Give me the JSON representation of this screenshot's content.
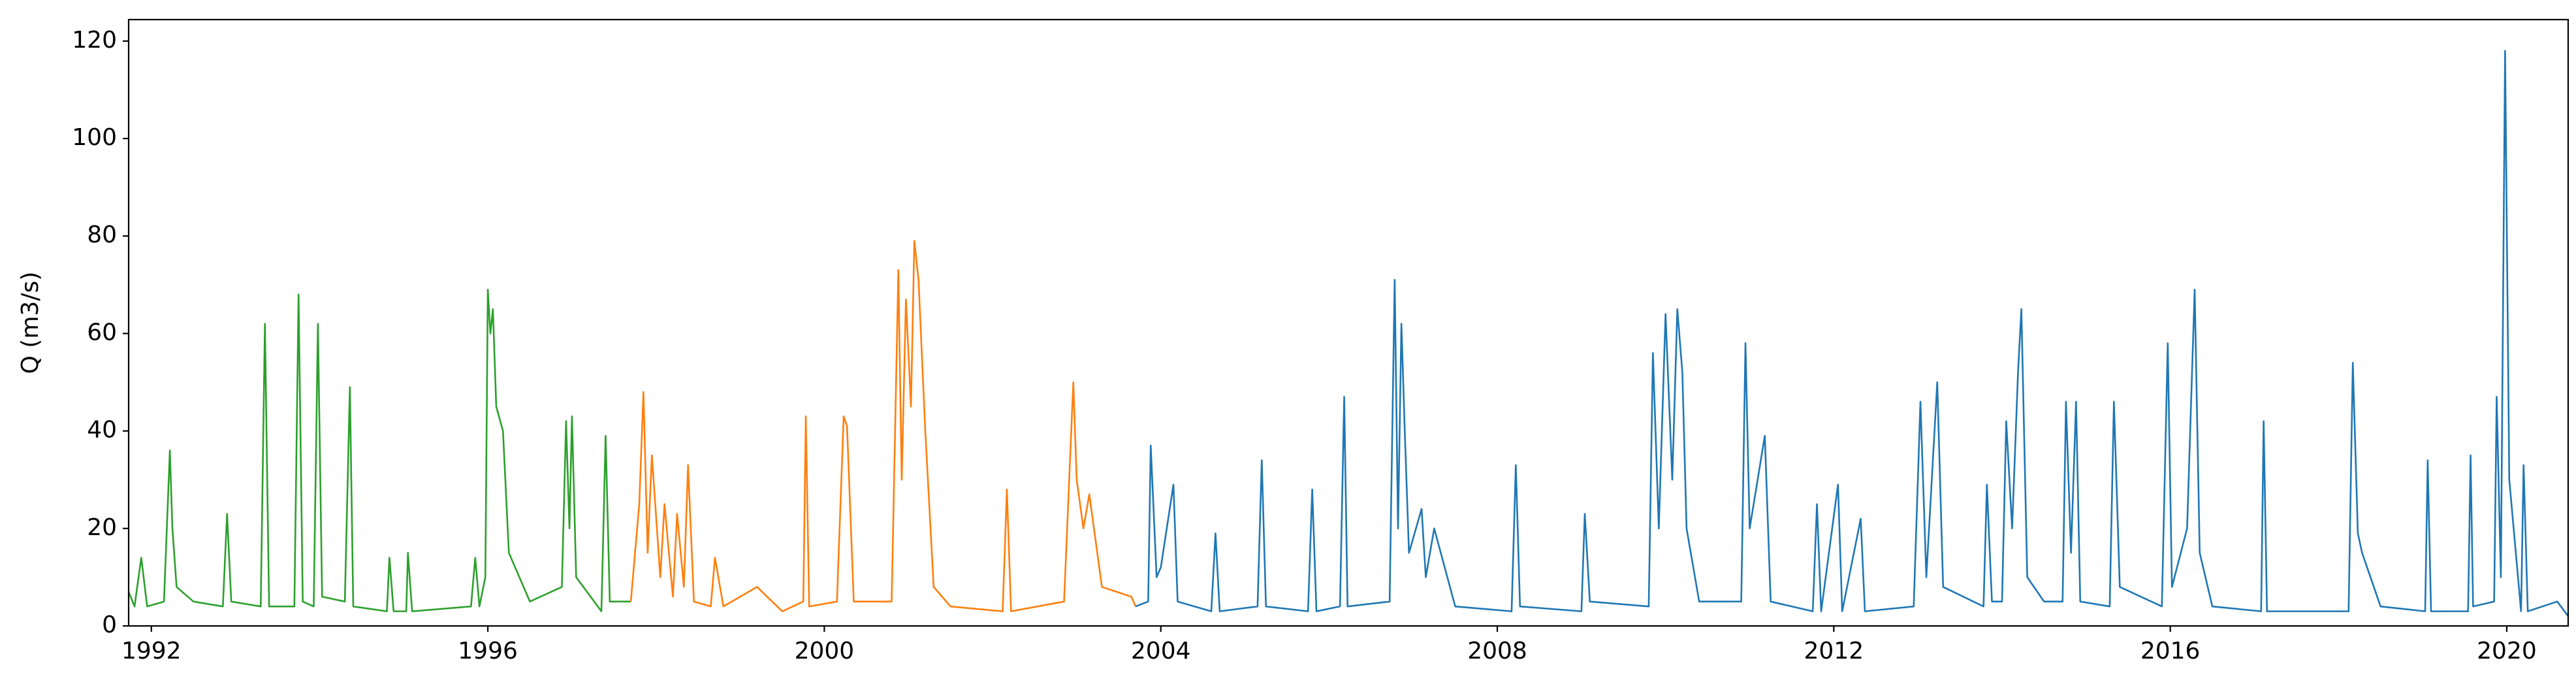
{
  "chart_data": {
    "type": "line",
    "ylabel": "Q (m3/s)",
    "xlim": [
      1991.73,
      2020.73
    ],
    "ylim": [
      0,
      124.4
    ],
    "xticks": [
      1992,
      1996,
      2000,
      2004,
      2008,
      2012,
      2016,
      2020
    ],
    "yticks": [
      0,
      20,
      40,
      60,
      80,
      100,
      120
    ],
    "grid": false,
    "series": [
      {
        "color": "#2ca02c",
        "x": [
          1991.73,
          1991.8,
          1991.88,
          1991.95,
          1992.15,
          1992.22,
          1992.25,
          1992.3,
          1992.5,
          1992.85,
          1992.9,
          1992.95,
          1993.3,
          1993.35,
          1993.4,
          1993.7,
          1993.75,
          1993.8,
          1993.93,
          1993.98,
          1994.03,
          1994.3,
          1994.36,
          1994.4,
          1994.8,
          1994.83,
          1994.88,
          1995.03,
          1995.05,
          1995.1,
          1995.8,
          1995.85,
          1995.9,
          1995.97,
          1996.0,
          1996.03,
          1996.06,
          1996.1,
          1996.18,
          1996.25,
          1996.5,
          1996.88,
          1996.93,
          1996.97,
          1997.0,
          1997.05,
          1997.35,
          1997.4,
          1997.45,
          1997.7
        ],
        "values": [
          7,
          4,
          14,
          4,
          5,
          36,
          20,
          8,
          5,
          4,
          23,
          5,
          4,
          62,
          4,
          4,
          68,
          5,
          4,
          62,
          6,
          5,
          49,
          4,
          3,
          14,
          3,
          3,
          15,
          3,
          4,
          14,
          4,
          10,
          69,
          60,
          65,
          45,
          40,
          15,
          5,
          8,
          42,
          20,
          43,
          10,
          3,
          39,
          5,
          5
        ]
      },
      {
        "color": "#ff7f0e",
        "x": [
          1997.7,
          1997.8,
          1997.85,
          1997.9,
          1997.95,
          1998.05,
          1998.1,
          1998.2,
          1998.25,
          1998.33,
          1998.38,
          1998.45,
          1998.65,
          1998.7,
          1998.8,
          1999.2,
          1999.5,
          1999.75,
          1999.78,
          1999.82,
          2000.15,
          2000.23,
          2000.27,
          2000.35,
          2000.8,
          2000.88,
          2000.92,
          2000.97,
          2001.03,
          2001.07,
          2001.12,
          2001.2,
          2001.3,
          2001.5,
          2002.12,
          2002.17,
          2002.22,
          2002.85,
          2002.96,
          2003.0,
          2003.08,
          2003.15,
          2003.3,
          2003.65,
          2003.7
        ],
        "values": [
          5,
          25,
          48,
          15,
          35,
          10,
          25,
          6,
          23,
          8,
          33,
          5,
          4,
          14,
          4,
          8,
          3,
          5,
          43,
          4,
          5,
          43,
          41,
          5,
          5,
          73,
          30,
          67,
          45,
          79,
          71,
          40,
          8,
          4,
          3,
          28,
          3,
          5,
          50,
          30,
          20,
          27,
          8,
          6,
          4
        ]
      },
      {
        "color": "#1f77b4",
        "x": [
          2003.7,
          2003.85,
          2003.88,
          2003.95,
          2004.0,
          2004.15,
          2004.2,
          2004.6,
          2004.65,
          2004.7,
          2005.15,
          2005.2,
          2005.25,
          2005.75,
          2005.8,
          2005.85,
          2006.13,
          2006.18,
          2006.22,
          2006.72,
          2006.78,
          2006.82,
          2006.86,
          2006.9,
          2006.95,
          2007.1,
          2007.15,
          2007.25,
          2007.5,
          2008.17,
          2008.22,
          2008.27,
          2009.0,
          2009.04,
          2009.1,
          2009.8,
          2009.85,
          2009.92,
          2010.0,
          2010.08,
          2010.14,
          2010.2,
          2010.25,
          2010.4,
          2010.9,
          2010.95,
          2011.0,
          2011.18,
          2011.25,
          2011.75,
          2011.8,
          2011.85,
          2012.05,
          2012.1,
          2012.32,
          2012.37,
          2012.95,
          2013.03,
          2013.1,
          2013.23,
          2013.3,
          2013.78,
          2013.82,
          2013.88,
          2014.0,
          2014.05,
          2014.12,
          2014.19,
          2014.23,
          2014.3,
          2014.5,
          2014.72,
          2014.76,
          2014.82,
          2014.88,
          2014.93,
          2015.28,
          2015.33,
          2015.4,
          2015.9,
          2015.97,
          2016.02,
          2016.2,
          2016.29,
          2016.35,
          2016.5,
          2017.08,
          2017.11,
          2017.15,
          2018.12,
          2018.17,
          2018.23,
          2018.28,
          2018.5,
          2019.03,
          2019.06,
          2019.1,
          2019.54,
          2019.57,
          2019.6,
          2019.85,
          2019.88,
          2019.93,
          2019.98,
          2020.03,
          2020.17,
          2020.2,
          2020.25,
          2020.6,
          2020.73
        ],
        "values": [
          4,
          5,
          37,
          10,
          12,
          29,
          5,
          3,
          19,
          3,
          4,
          34,
          4,
          3,
          28,
          3,
          4,
          47,
          4,
          5,
          71,
          20,
          62,
          40,
          15,
          24,
          10,
          20,
          4,
          3,
          33,
          4,
          3,
          23,
          5,
          4,
          56,
          20,
          64,
          30,
          65,
          52,
          20,
          5,
          5,
          58,
          20,
          39,
          5,
          3,
          25,
          3,
          29,
          3,
          22,
          3,
          4,
          46,
          10,
          50,
          8,
          4,
          29,
          5,
          5,
          42,
          20,
          52,
          65,
          10,
          5,
          5,
          46,
          15,
          46,
          5,
          4,
          46,
          8,
          4,
          58,
          8,
          20,
          69,
          15,
          4,
          3,
          42,
          3,
          3,
          54,
          19,
          15,
          4,
          3,
          34,
          3,
          3,
          35,
          4,
          5,
          47,
          10,
          118,
          30,
          3,
          33,
          3,
          5,
          2
        ]
      }
    ]
  }
}
